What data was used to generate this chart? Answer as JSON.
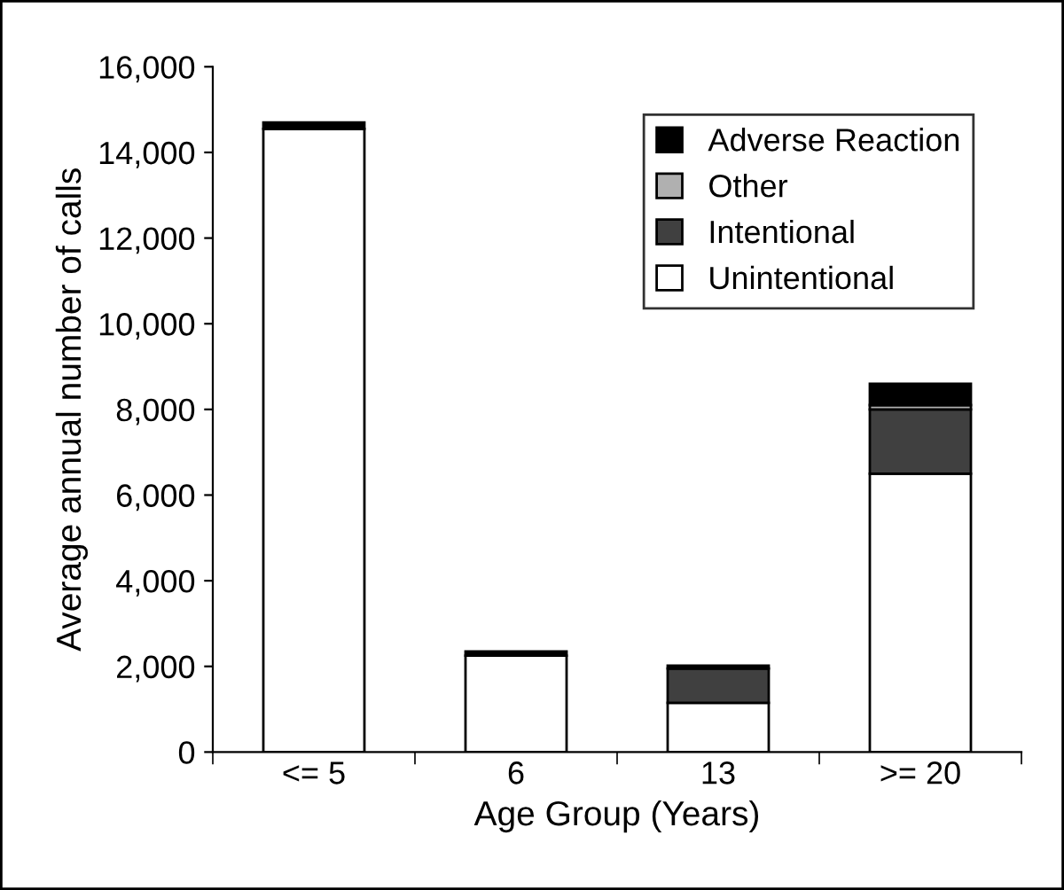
{
  "chart_data": {
    "type": "bar",
    "stacked": true,
    "xlabel": "Age Group (Years)",
    "ylabel": "Average annual number of calls",
    "categories": [
      "<= 5",
      "6",
      "13",
      ">= 20"
    ],
    "series": [
      {
        "name": "Unintentional",
        "color": "#ffffff",
        "values": [
          14550,
          2250,
          1150,
          6500
        ]
      },
      {
        "name": "Intentional",
        "color": "#404040",
        "values": [
          0,
          null,
          800,
          1500
        ]
      },
      {
        "name": "Other",
        "color": "#b0b0b0",
        "values": [
          0,
          null,
          null,
          100
        ]
      },
      {
        "name": "Adverse Reaction",
        "color": "#000000",
        "values": [
          150,
          100,
          70,
          500
        ]
      }
    ],
    "ylim": [
      0,
      16000
    ],
    "yticks": [
      0,
      {
        "value": 2000,
        "label": "2,000"
      },
      {
        "value": 4000,
        "label": "4,000"
      },
      {
        "value": 6000,
        "label": "6,000"
      },
      {
        "value": 8000,
        "label": "8,000"
      },
      {
        "value": 10000,
        "label": "10,000"
      },
      {
        "value": 12000,
        "label": "12,000"
      },
      {
        "value": 14000,
        "label": "14,000"
      },
      {
        "value": 16000,
        "label": "16,000"
      }
    ],
    "legend": "top right",
    "grid": false
  }
}
